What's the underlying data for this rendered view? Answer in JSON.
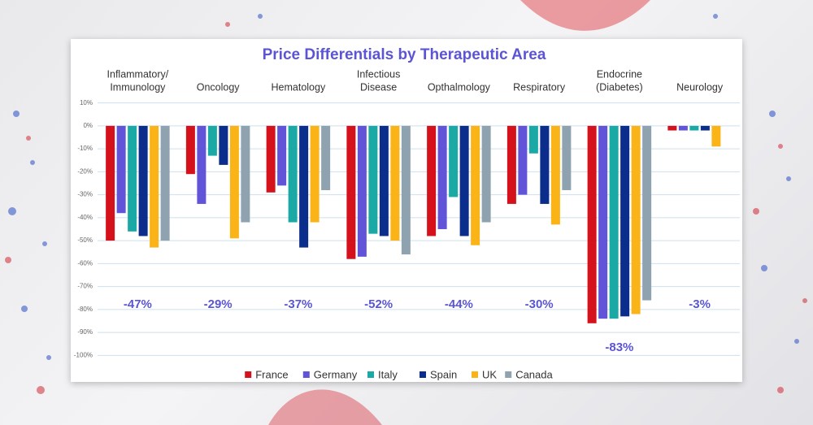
{
  "chart_data": {
    "type": "bar",
    "title": "Price Differentials by Therapeutic Area",
    "categories": [
      [
        "Inflammatory/",
        "Immunology"
      ],
      [
        "Oncology"
      ],
      [
        "Hematology"
      ],
      [
        "Infectious",
        "Disease"
      ],
      [
        "Opthalmology"
      ],
      [
        "Respiratory"
      ],
      [
        "Endocrine",
        "(Diabetes)"
      ],
      [
        "Neurology"
      ]
    ],
    "series": [
      {
        "name": "France",
        "color": "#d5121c",
        "values": [
          -50,
          -21,
          -29,
          -58,
          -48,
          -34,
          -86,
          -2
        ]
      },
      {
        "name": "Germany",
        "color": "#6254d8",
        "values": [
          -38,
          -34,
          -26,
          -57,
          -45,
          -30,
          -84,
          -2
        ]
      },
      {
        "name": "Italy",
        "color": "#1ba9a6",
        "values": [
          -46,
          -13,
          -42,
          -47,
          -31,
          -12,
          -84,
          -2
        ]
      },
      {
        "name": "Spain",
        "color": "#0b2d8c",
        "values": [
          -48,
          -17,
          -53,
          -48,
          -48,
          -34,
          -83,
          -2
        ]
      },
      {
        "name": "UK",
        "color": "#fbb418",
        "values": [
          -53,
          -49,
          -42,
          -50,
          -52,
          -43,
          -82,
          -9
        ]
      },
      {
        "name": "Canada",
        "color": "#8ea2b0",
        "values": [
          -50,
          -42,
          -28,
          -56,
          -42,
          -28,
          -76,
          null
        ]
      }
    ],
    "averages": {
      "values": [
        -47,
        -29,
        -37,
        -52,
        -44,
        -30,
        -83,
        -3
      ],
      "value_labels": [
        "-47%",
        "-29%",
        "-37%",
        "-52%",
        "-44%",
        "-30%",
        "-83%",
        "-3%"
      ]
    },
    "ylim": [
      -102,
      12
    ],
    "yticks": [
      {
        "value": 10,
        "label": "10%"
      },
      {
        "value": 0,
        "label": "0%"
      },
      {
        "value": -10,
        "label": "-10%"
      },
      {
        "value": -20,
        "label": "-20%"
      },
      {
        "value": -30,
        "label": "-30%"
      },
      {
        "value": -40,
        "label": "-40%"
      },
      {
        "value": -50,
        "label": "-50%"
      },
      {
        "value": -60,
        "label": "-60%"
      },
      {
        "value": -70,
        "label": "-70%"
      },
      {
        "value": -80,
        "label": "-80%"
      },
      {
        "value": -90,
        "label": "-90%"
      },
      {
        "value": -100,
        "label": "-100%"
      }
    ],
    "grid": true,
    "legend": "bottom"
  }
}
